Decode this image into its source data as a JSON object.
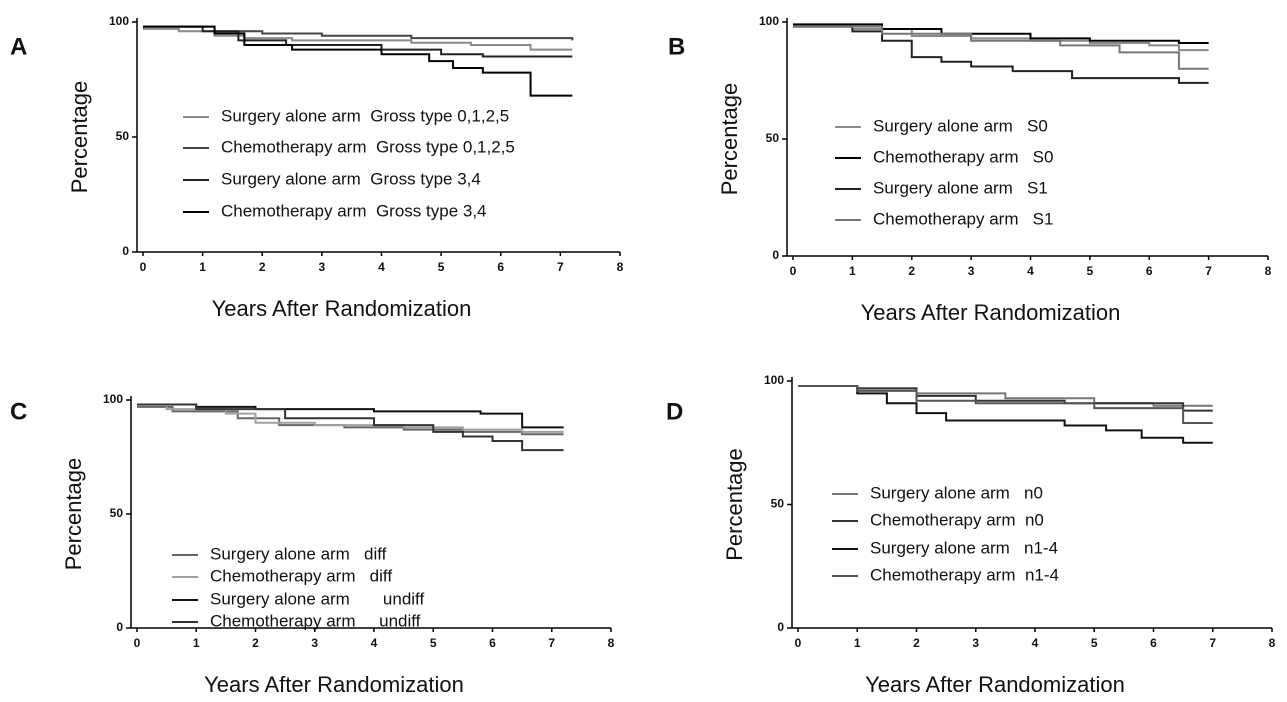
{
  "chart_data": [
    {
      "type": "line",
      "step": true,
      "panel": "A",
      "xlabel": "Years After Randomization",
      "ylabel": "Percentage",
      "xlim": [
        0,
        8
      ],
      "ylim": [
        0,
        100
      ],
      "xticks": [
        0,
        1,
        2,
        3,
        4,
        5,
        6,
        7,
        8
      ],
      "yticks": [
        0,
        50,
        100
      ],
      "series": [
        {
          "name": "Surgery alone arm  Gross type 0,1,2,5",
          "color": "#8a8a8a",
          "x": [
            0,
            0.6,
            1.2,
            1.7,
            2.5,
            4.5,
            5.5,
            6.5,
            7.2
          ],
          "values": [
            97,
            96,
            94,
            93,
            92,
            91,
            90,
            88,
            88
          ]
        },
        {
          "name": "Chemotherapy arm  Gross type 0,1,2,5",
          "color": "#444444",
          "x": [
            0,
            1.2,
            2,
            3,
            4.5,
            5.5,
            7.2
          ],
          "values": [
            98,
            96,
            95,
            94,
            93,
            93,
            92
          ]
        },
        {
          "name": "Surgery alone arm  Gross type 3,4",
          "color": "#222222",
          "x": [
            0,
            1,
            1.6,
            2.4,
            4,
            5,
            5.7,
            7.2
          ],
          "values": [
            98,
            96,
            92,
            90,
            88,
            86,
            85,
            85
          ]
        },
        {
          "name": "Chemotherapy arm  Gross type 3,4",
          "color": "#000000",
          "x": [
            0,
            1.2,
            1.7,
            2.5,
            4,
            4.8,
            5.2,
            5.7,
            6.5,
            7.2
          ],
          "values": [
            98,
            95,
            90,
            88,
            86,
            83,
            80,
            78,
            68,
            68
          ]
        }
      ]
    },
    {
      "type": "line",
      "step": true,
      "panel": "B",
      "xlabel": "Years After Randomization",
      "ylabel": "Percentage",
      "xlim": [
        0,
        8
      ],
      "ylim": [
        0,
        100
      ],
      "xticks": [
        0,
        1,
        2,
        3,
        4,
        5,
        6,
        7,
        8
      ],
      "yticks": [
        0,
        50,
        100
      ],
      "series": [
        {
          "name": "Surgery alone arm   S0",
          "color": "#8a8a8a",
          "x": [
            0,
            1,
            2,
            3,
            4,
            5,
            6,
            6.5,
            7
          ],
          "values": [
            98,
            97,
            94,
            93,
            92,
            91,
            90,
            88,
            88
          ]
        },
        {
          "name": "Chemotherapy arm   S0",
          "color": "#000000",
          "x": [
            0,
            1.5,
            2.5,
            4,
            5,
            6.5,
            7
          ],
          "values": [
            99,
            97,
            95,
            93,
            92,
            91,
            91
          ]
        },
        {
          "name": "Surgery alone arm   S1",
          "color": "#222222",
          "x": [
            0,
            1,
            1.5,
            2,
            2.5,
            3,
            3.7,
            4.7,
            6.5,
            7
          ],
          "values": [
            98,
            96,
            92,
            85,
            83,
            81,
            79,
            76,
            74,
            74
          ]
        },
        {
          "name": "Chemotherapy arm   S1",
          "color": "#777777",
          "x": [
            0,
            1.5,
            3,
            4.5,
            5.5,
            6.5,
            7
          ],
          "values": [
            98,
            95,
            92,
            90,
            87,
            80,
            80
          ]
        }
      ]
    },
    {
      "type": "line",
      "step": true,
      "panel": "C",
      "xlabel": "Years After Randomization",
      "ylabel": "Percentage",
      "xlim": [
        0,
        8
      ],
      "ylim": [
        0,
        100
      ],
      "xticks": [
        0,
        1,
        2,
        3,
        4,
        5,
        6,
        7,
        8
      ],
      "yticks": [
        0,
        50,
        100
      ],
      "series": [
        {
          "name": "Surgery alone arm   diff",
          "color": "#666666",
          "x": [
            0,
            0.6,
            1.7,
            2.4,
            3.5,
            4.5,
            5.5,
            6.5,
            7.2
          ],
          "values": [
            97,
            95,
            92,
            89,
            88,
            87,
            86,
            85,
            85
          ]
        },
        {
          "name": "Chemotherapy arm   diff",
          "color": "#a0a0a0",
          "x": [
            0,
            0.5,
            1.5,
            2,
            3,
            4.5,
            5.5,
            6.5,
            7.2
          ],
          "values": [
            98,
            96,
            94,
            90,
            89,
            88,
            87,
            86,
            86
          ]
        },
        {
          "name": "Surgery alone arm       undiff",
          "color": "#111111",
          "x": [
            0,
            1,
            2,
            4,
            5.8,
            6.5,
            7.2
          ],
          "values": [
            98,
            97,
            96,
            95,
            94,
            88,
            88
          ]
        },
        {
          "name": "Chemotherapy arm     undiff",
          "color": "#333333",
          "x": [
            0,
            1,
            2.5,
            4,
            5,
            5.5,
            6,
            6.5,
            7.2
          ],
          "values": [
            98,
            96,
            92,
            89,
            86,
            84,
            82,
            78,
            78
          ]
        }
      ]
    },
    {
      "type": "line",
      "step": true,
      "panel": "D",
      "xlabel": "Years After Randomization",
      "ylabel": "Percentage",
      "xlim": [
        0,
        8
      ],
      "ylim": [
        0,
        100
      ],
      "xticks": [
        0,
        1,
        2,
        3,
        4,
        5,
        6,
        7,
        8
      ],
      "yticks": [
        0,
        50,
        100
      ],
      "series": [
        {
          "name": "Surgery alone arm   n0",
          "color": "#777777",
          "x": [
            0,
            1,
            2,
            3.5,
            5,
            6,
            7
          ],
          "values": [
            98,
            97,
            95,
            93,
            91,
            90,
            90
          ]
        },
        {
          "name": "Chemotherapy arm  n0",
          "color": "#333333",
          "x": [
            0,
            1,
            2,
            3,
            4.5,
            6.5,
            7
          ],
          "values": [
            98,
            97,
            94,
            92,
            91,
            88,
            88
          ]
        },
        {
          "name": "Surgery alone arm   n1-4",
          "color": "#111111",
          "x": [
            0,
            1,
            1.5,
            2,
            2.5,
            4.5,
            5.2,
            5.8,
            6.5,
            7
          ],
          "values": [
            98,
            95,
            91,
            87,
            84,
            82,
            80,
            77,
            75,
            75
          ]
        },
        {
          "name": "Chemotherapy arm  n1-4",
          "color": "#555555",
          "x": [
            0,
            1,
            2,
            3,
            5,
            6.5,
            7
          ],
          "values": [
            98,
            96,
            92,
            91,
            89,
            83,
            83
          ]
        }
      ]
    }
  ]
}
